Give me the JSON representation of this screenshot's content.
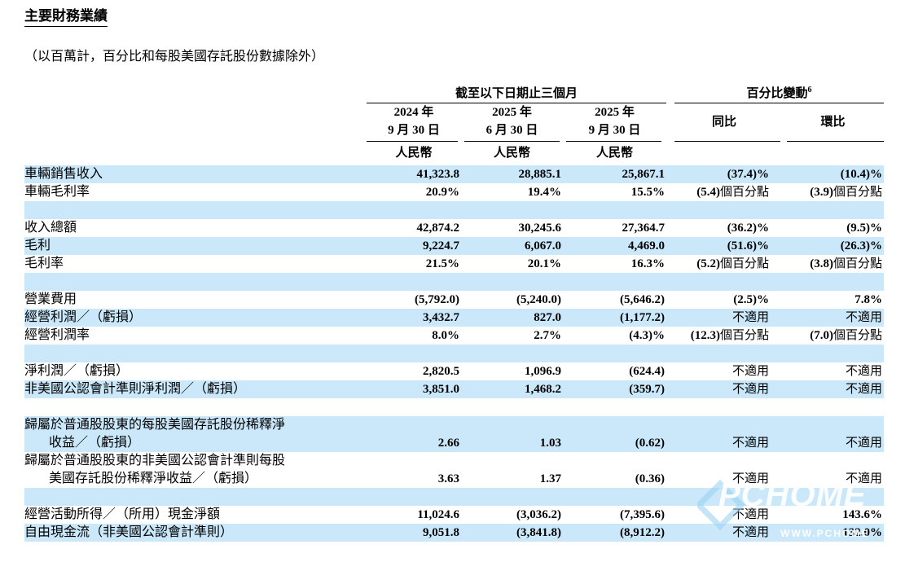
{
  "page": {
    "title": "主要財務業績",
    "subtitle": "（以百萬計，百分比和每股美國存託股份數據除外）"
  },
  "colors": {
    "row_highlight": "#CAE8FA",
    "text": "#000000",
    "watermark_accent": "#96CDEE"
  },
  "table": {
    "group_periods": "截至以下日期止三個月",
    "group_change": "百分比變動",
    "group_change_footnote": "6",
    "period_columns": [
      {
        "year": "2024 年",
        "date": "9 月 30 日"
      },
      {
        "year": "2025 年",
        "date": "6 月 30 日"
      },
      {
        "year": "2025 年",
        "date": "9 月 30 日"
      }
    ],
    "change_columns": [
      "同比",
      "環比"
    ],
    "currency_label": "人民幣",
    "rows": [
      {
        "label": "車輛銷售收入",
        "values": [
          "41,323.8",
          "28,885.1",
          "25,867.1",
          "(37.4)%",
          "(10.4)%"
        ],
        "shaded": true
      },
      {
        "label": "車輛毛利率",
        "values": [
          "20.9%",
          "19.4%",
          "15.5%",
          "(5.4)個百分點",
          "(3.9)個百分點"
        ],
        "shaded": false
      },
      {
        "blank": true,
        "shaded": true
      },
      {
        "label": "收入總額",
        "values": [
          "42,874.2",
          "30,245.6",
          "27,364.7",
          "(36.2)%",
          "(9.5)%"
        ],
        "shaded": false
      },
      {
        "label": "毛利",
        "values": [
          "9,224.7",
          "6,067.0",
          "4,469.0",
          "(51.6)%",
          "(26.3)%"
        ],
        "shaded": true
      },
      {
        "label": "毛利率",
        "values": [
          "21.5%",
          "20.1%",
          "16.3%",
          "(5.2)個百分點",
          "(3.8)個百分點"
        ],
        "shaded": false
      },
      {
        "blank": true,
        "shaded": true
      },
      {
        "label": "營業費用",
        "values": [
          "(5,792.0)",
          "(5,240.0)",
          "(5,646.2)",
          "(2.5)%",
          "7.8%"
        ],
        "shaded": false
      },
      {
        "label": "經營利潤／（虧損）",
        "values": [
          "3,432.7",
          "827.0",
          "(1,177.2)",
          "不適用",
          "不適用"
        ],
        "shaded": true
      },
      {
        "label": "經營利潤率",
        "values": [
          "8.0%",
          "2.7%",
          "(4.3)%",
          "(12.3)個百分點",
          "(7.0)個百分點"
        ],
        "shaded": false
      },
      {
        "blank": true,
        "shaded": true
      },
      {
        "label": "淨利潤／（虧損）",
        "values": [
          "2,820.5",
          "1,096.9",
          "(624.4)",
          "不適用",
          "不適用"
        ],
        "shaded": false
      },
      {
        "label": "非美國公認會計準則淨利潤／（虧損）",
        "values": [
          "3,851.0",
          "1,468.2",
          "(359.7)",
          "不適用",
          "不適用"
        ],
        "shaded": true
      },
      {
        "blank": true,
        "shaded": false
      },
      {
        "label": "歸屬於普通股股東的每股美國存託股份稀釋淨",
        "label2": "收益／（虧損）",
        "values": [
          "2.66",
          "1.03",
          "(0.62)",
          "不適用",
          "不適用"
        ],
        "shaded": true
      },
      {
        "label": "歸屬於普通股股東的非美國公認會計準則每股",
        "label2": "美國存託股份稀釋淨收益／（虧損）",
        "values": [
          "3.63",
          "1.37",
          "(0.36)",
          "不適用",
          "不適用"
        ],
        "shaded": false
      },
      {
        "blank": true,
        "shaded": true
      },
      {
        "label": "經營活動所得／（所用）現金淨額",
        "values": [
          "11,024.6",
          "(3,036.2)",
          "(7,395.6)",
          "不適用",
          "143.6%"
        ],
        "shaded": false
      },
      {
        "label": "自由現金流（非美國公認會計準則）",
        "values": [
          "9,051.8",
          "(3,841.8)",
          "(8,912.2)",
          "不適用",
          "132.0%"
        ],
        "shaded": true
      }
    ]
  },
  "watermark": {
    "main": "PCHOME",
    "sub": "WWW.PCHOME"
  }
}
